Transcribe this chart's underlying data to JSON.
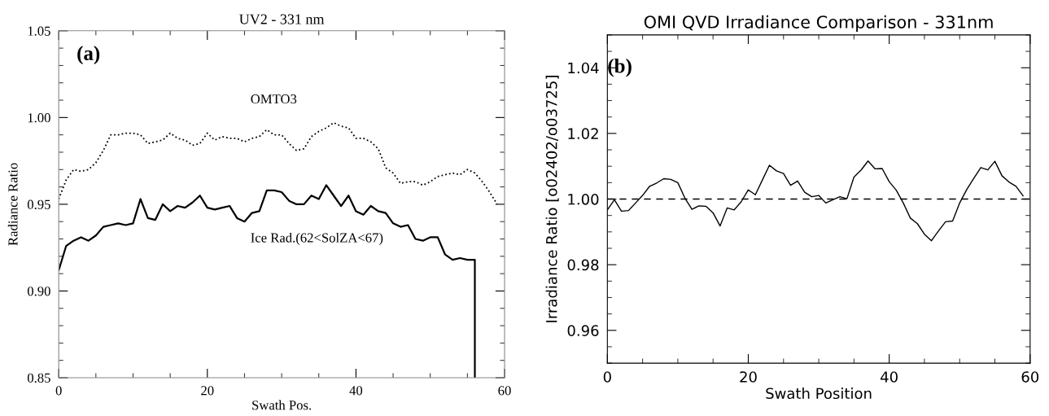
{
  "chart_data": [
    {
      "type": "line",
      "title": "UV2 - 331 nm",
      "xlabel": "Swath Pos.",
      "ylabel": "Radiance Ratio",
      "annotations": [
        "(a)"
      ],
      "xlim": [
        0,
        60
      ],
      "xticks": [
        0,
        20,
        40,
        60
      ],
      "ylim": [
        0.85,
        1.05
      ],
      "yticks": [
        {
          "value": 0.85,
          "label": "0.85"
        },
        {
          "value": 0.9,
          "label": "0.90"
        },
        {
          "value": 0.95,
          "label": "0.95"
        },
        {
          "value": 1.0,
          "label": "1.00"
        },
        {
          "value": 1.05,
          "label": "1.05"
        }
      ],
      "grid": false,
      "legend": false,
      "series": [
        {
          "name": "OMTO3",
          "color": "#000000",
          "line_style": "dotted",
          "x": [
            0,
            1,
            2,
            3,
            4,
            5,
            6,
            7,
            8,
            9,
            10,
            11,
            12,
            13,
            14,
            15,
            16,
            17,
            18,
            19,
            20,
            21,
            22,
            23,
            24,
            25,
            26,
            27,
            28,
            29,
            30,
            31,
            32,
            33,
            34,
            35,
            36,
            37,
            38,
            39,
            40,
            41,
            42,
            43,
            44,
            45,
            46,
            47,
            48,
            49,
            50,
            51,
            52,
            53,
            54,
            55,
            56,
            57,
            58,
            59
          ],
          "values": [
            0.953,
            0.964,
            0.97,
            0.969,
            0.97,
            0.974,
            0.981,
            0.99,
            0.99,
            0.991,
            0.991,
            0.99,
            0.985,
            0.986,
            0.987,
            0.991,
            0.988,
            0.987,
            0.984,
            0.985,
            0.991,
            0.987,
            0.989,
            0.988,
            0.988,
            0.986,
            0.988,
            0.989,
            0.993,
            0.99,
            0.99,
            0.985,
            0.981,
            0.982,
            0.989,
            0.992,
            0.994,
            0.997,
            0.995,
            0.994,
            0.988,
            0.988,
            0.986,
            0.982,
            0.971,
            0.968,
            0.962,
            0.963,
            0.963,
            0.961,
            0.963,
            0.966,
            0.967,
            0.968,
            0.967,
            0.97,
            0.968,
            0.963,
            0.957,
            0.95
          ]
        },
        {
          "name": "Ice Rad.(62<SolZA<67)",
          "color": "#000000",
          "line_style": "solid",
          "x": [
            0,
            1,
            2,
            3,
            4,
            5,
            6,
            7,
            8,
            9,
            10,
            11,
            12,
            13,
            14,
            15,
            16,
            17,
            18,
            19,
            20,
            21,
            22,
            23,
            24,
            25,
            26,
            27,
            28,
            29,
            30,
            31,
            32,
            33,
            34,
            35,
            36,
            37,
            38,
            39,
            40,
            41,
            42,
            43,
            44,
            45,
            46,
            47,
            48,
            49,
            50,
            51,
            52,
            53,
            54,
            55,
            56,
            56
          ],
          "values": [
            0.912,
            0.926,
            0.929,
            0.931,
            0.929,
            0.932,
            0.937,
            0.938,
            0.939,
            0.938,
            0.939,
            0.953,
            0.942,
            0.941,
            0.95,
            0.946,
            0.949,
            0.948,
            0.951,
            0.955,
            0.948,
            0.947,
            0.948,
            0.949,
            0.942,
            0.94,
            0.945,
            0.946,
            0.958,
            0.958,
            0.957,
            0.952,
            0.95,
            0.95,
            0.955,
            0.953,
            0.961,
            0.955,
            0.949,
            0.955,
            0.946,
            0.944,
            0.949,
            0.946,
            0.945,
            0.939,
            0.937,
            0.938,
            0.93,
            0.929,
            0.931,
            0.931,
            0.921,
            0.918,
            0.919,
            0.918,
            0.918,
            0.85
          ]
        }
      ]
    },
    {
      "type": "line",
      "title": "OMI QVD Irradiance Comparison - 331nm",
      "xlabel": "Swath Position",
      "ylabel": "Irradiance Ratio [o02402/o03725]",
      "annotations": [
        "(b)"
      ],
      "xlim": [
        0,
        60
      ],
      "xticks": [
        0,
        20,
        40,
        60
      ],
      "ylim": [
        0.95,
        1.05
      ],
      "yticks": [
        {
          "value": 0.96,
          "label": "0.96"
        },
        {
          "value": 0.98,
          "label": "0.98"
        },
        {
          "value": 1.0,
          "label": "1.00"
        },
        {
          "value": 1.02,
          "label": "1.02"
        },
        {
          "value": 1.04,
          "label": "1.04"
        }
      ],
      "grid": false,
      "legend": false,
      "ref_lines": [
        {
          "axis": "y",
          "value": 1.0,
          "label": null,
          "color": "#000000",
          "line_style": "dashed"
        }
      ],
      "series": [
        {
          "color": "#000000",
          "line_style": "solid",
          "x": [
            0,
            1,
            2,
            3,
            4,
            5,
            6,
            7,
            8,
            9,
            10,
            11,
            12,
            13,
            14,
            15,
            16,
            17,
            18,
            19,
            20,
            21,
            22,
            23,
            24,
            25,
            26,
            27,
            28,
            29,
            30,
            31,
            32,
            33,
            34,
            35,
            36,
            37,
            38,
            39,
            40,
            41,
            42,
            43,
            44,
            45,
            46,
            47,
            48,
            49,
            50,
            51,
            52,
            53,
            54,
            55,
            56,
            57,
            58,
            59
          ],
          "values": [
            0.9967,
            0.9998,
            0.9963,
            0.9965,
            0.9988,
            1.0011,
            1.0039,
            1.0049,
            1.0062,
            1.006,
            1.005,
            1.0003,
            0.9969,
            0.9979,
            0.9978,
            0.9958,
            0.9918,
            0.9973,
            0.9967,
            0.9992,
            1.0028,
            1.0013,
            1.0058,
            1.0103,
            1.0086,
            1.0078,
            1.0042,
            1.0055,
            1.0021,
            1.0007,
            1.0011,
            0.9988,
            0.9998,
            1.0007,
            1.0001,
            1.0067,
            1.0088,
            1.0116,
            1.0092,
            1.0093,
            1.0053,
            1.0027,
            0.9988,
            0.9942,
            0.9925,
            0.9893,
            0.9873,
            0.9903,
            0.9931,
            0.9933,
            0.9988,
            1.0029,
            1.0063,
            1.0096,
            1.0089,
            1.0115,
            1.0071,
            1.0052,
            1.0039,
            1.001
          ]
        }
      ]
    }
  ]
}
